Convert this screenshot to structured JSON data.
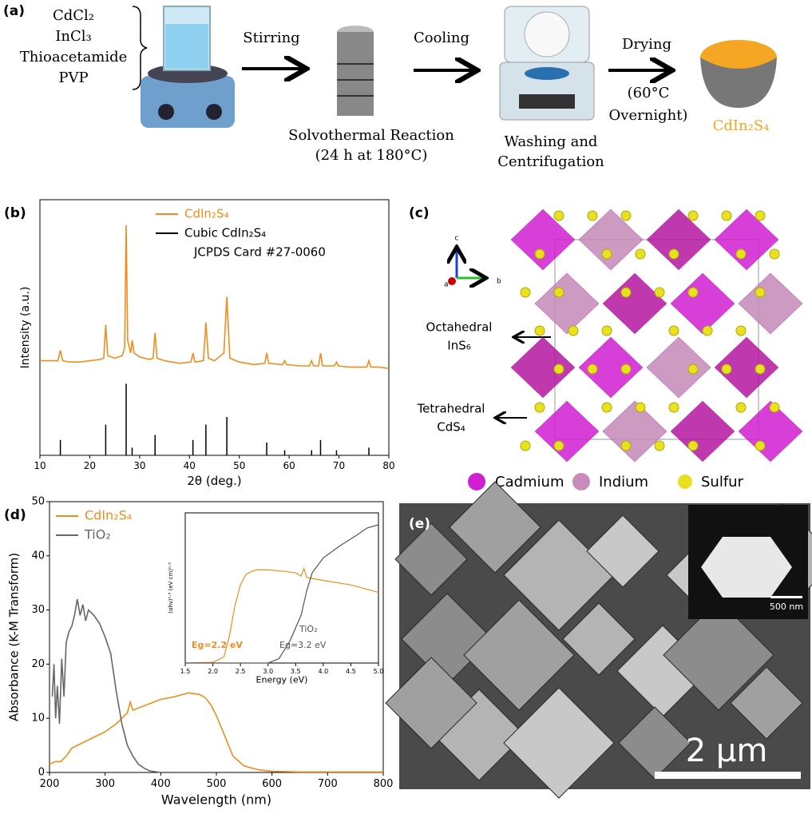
{
  "panel_a": {
    "label": "(a)",
    "reagents": [
      "CdCl₂",
      "InCl₃",
      "Thioacetamide",
      "PVP"
    ],
    "steps": [
      {
        "arrow": "Stirring",
        "caption": [
          "Solvothermal Reaction",
          "(24 h at 180°C)"
        ]
      },
      {
        "arrow": "Cooling",
        "caption": [
          "Washing and",
          "Centrifugation"
        ]
      },
      {
        "arrow": "Drying",
        "caption": [
          "(60°C",
          "Overnight)"
        ]
      }
    ],
    "product": "CdIn₂S₄"
  },
  "chart_data": [
    {
      "type": "line",
      "panel_label": "(b)",
      "xlabel": "2θ (deg.)",
      "ylabel": "Intensity (a.u.)",
      "xlim": [
        10,
        80
      ],
      "xticks": [
        10,
        20,
        30,
        40,
        50,
        60,
        70,
        80
      ],
      "ylim": [
        0,
        100
      ],
      "legend": "upper center",
      "legend_note": "JCPDS Card #27-0060",
      "series": [
        {
          "name": "CdIn₂S₄",
          "color": "#f08c1e",
          "x": [
            10,
            12,
            13.6,
            14.1,
            14.6,
            16,
            18,
            20,
            22,
            22.8,
            23.2,
            23.6,
            25,
            26.5,
            27,
            27.3,
            27.6,
            28.2,
            28.5,
            28.9,
            30,
            32,
            32.7,
            33.1,
            33.5,
            35,
            38,
            40.3,
            40.7,
            41.1,
            42.8,
            43.3,
            43.8,
            45,
            46.9,
            47.5,
            48.1,
            50,
            53,
            55.1,
            55.5,
            55.9,
            58.7,
            59.1,
            59.5,
            62,
            64.1,
            64.5,
            64.9,
            65.9,
            66.3,
            66.7,
            69.1,
            69.5,
            69.9,
            72,
            75.6,
            76,
            76.4,
            78,
            80
          ],
          "values": [
            37,
            37,
            37,
            41,
            37,
            36.5,
            36.5,
            37,
            37.5,
            38,
            51,
            39,
            38,
            39,
            42,
            90,
            45,
            40,
            45,
            40,
            38.5,
            37.5,
            38,
            48,
            38,
            37,
            36,
            36.5,
            40,
            36.5,
            37,
            52,
            38,
            37,
            40,
            62,
            38,
            36.5,
            35.5,
            36,
            40,
            36,
            35.5,
            37,
            35.5,
            35,
            35,
            37,
            35,
            35,
            40,
            35,
            35,
            36.5,
            35,
            34.5,
            34.5,
            37,
            34.5,
            34.5,
            34
          ]
        },
        {
          "name": "Cubic CdIn₂S₄",
          "color": "#000000",
          "style": "stick",
          "x": [
            14.1,
            23.2,
            27.3,
            28.5,
            33.1,
            40.7,
            43.3,
            47.5,
            55.5,
            59.1,
            64.5,
            66.3,
            69.5,
            76
          ],
          "values": [
            6,
            12,
            28,
            3,
            8,
            6,
            12,
            15,
            5,
            2,
            2,
            6,
            2,
            3
          ]
        }
      ]
    },
    {
      "type": "line",
      "panel_label": "(d)",
      "xlabel": "Wavelength (nm)",
      "ylabel": "Absorbance (K-M Transform)",
      "xlim": [
        200,
        800
      ],
      "xticks": [
        200,
        300,
        400,
        500,
        600,
        700,
        800
      ],
      "ylim": [
        0,
        50
      ],
      "yticks": [
        0,
        10,
        20,
        30,
        40,
        50
      ],
      "legend": "upper left",
      "series": [
        {
          "name": "CdIn₂S₄",
          "color": "#f08c1e",
          "x": [
            200,
            210,
            220,
            230,
            240,
            250,
            260,
            280,
            300,
            320,
            330,
            340,
            345,
            350,
            375,
            400,
            425,
            450,
            470,
            480,
            490,
            500,
            510,
            520,
            530,
            550,
            575,
            600,
            650,
            700,
            750,
            800
          ],
          "values": [
            1.5,
            2,
            2,
            3,
            4.5,
            5,
            5.5,
            6.5,
            7.5,
            9,
            10,
            11,
            13,
            11.5,
            12.5,
            13.5,
            14,
            14.7,
            14.4,
            13.8,
            12.5,
            10.5,
            8,
            5.5,
            3,
            1.2,
            0.5,
            0.2,
            0.1,
            0.1,
            0.1,
            0.1
          ]
        },
        {
          "name": "TiO₂",
          "color": "#666666",
          "x": [
            205,
            208,
            211,
            214,
            218,
            222,
            226,
            230,
            235,
            240,
            245,
            250,
            255,
            260,
            265,
            270,
            280,
            290,
            300,
            310,
            320,
            330,
            340,
            350,
            360,
            370,
            380,
            400
          ],
          "values": [
            14,
            20,
            10,
            16,
            9,
            21,
            14,
            24,
            26,
            27,
            29,
            32,
            29,
            31,
            28,
            30,
            29,
            27.5,
            25,
            22,
            15,
            9,
            5,
            3,
            1.5,
            0.8,
            0.3,
            0
          ]
        }
      ]
    },
    {
      "type": "line",
      "xlabel": "Energy (eV)",
      "ylabel": "(αhν)⁰·⁵ (eV cm)⁰·⁵",
      "xlim": [
        1.5,
        5.0
      ],
      "xticks": [
        1.5,
        {
          "value": 2,
          "label": "2.0"
        },
        2.5,
        {
          "value": 3,
          "label": "3.0"
        },
        3.5,
        {
          "value": 4,
          "label": "4.0"
        },
        4.5,
        {
          "value": 5,
          "label": "5.0"
        }
      ],
      "ylim": [
        0,
        100
      ],
      "annotations": [
        {
          "text": "Eg=2.2 eV",
          "color": "#f08c1e"
        },
        {
          "text": "TiO₂",
          "color": "#555555"
        },
        {
          "text": "Eg=3.2 eV",
          "color": "#555555"
        }
      ],
      "series": [
        {
          "color": "#f08c1e",
          "x": [
            1.5,
            2.0,
            2.2,
            2.3,
            2.4,
            2.5,
            2.6,
            2.7,
            2.8,
            3.0,
            3.3,
            3.5,
            3.6,
            3.65,
            3.7,
            4.0,
            4.5,
            5.0
          ],
          "values": [
            0,
            0.5,
            4,
            18,
            38,
            52,
            59,
            61,
            62,
            62,
            61,
            60,
            58,
            63,
            57,
            55,
            52,
            47
          ]
        },
        {
          "color": "#555555",
          "x": [
            1.5,
            3.0,
            3.2,
            3.4,
            3.6,
            3.7,
            3.8,
            4.0,
            4.3,
            4.6,
            4.8,
            5.0
          ],
          "values": [
            0,
            0,
            3,
            15,
            32,
            48,
            60,
            70,
            78,
            85,
            90,
            92
          ]
        }
      ]
    }
  ],
  "panel_c": {
    "label": "(c)",
    "axes": [
      "c",
      "b",
      "a"
    ],
    "octahedral": [
      "Octahedral",
      "InS₆"
    ],
    "tetrahedral": [
      "Tetrahedral",
      "CdS₄"
    ],
    "legend": [
      "Cadmium",
      "Indium",
      "Sulfur"
    ]
  },
  "panel_e": {
    "label": "(e)",
    "scale_main": "2 μm",
    "scale_inset": "500 nm"
  }
}
